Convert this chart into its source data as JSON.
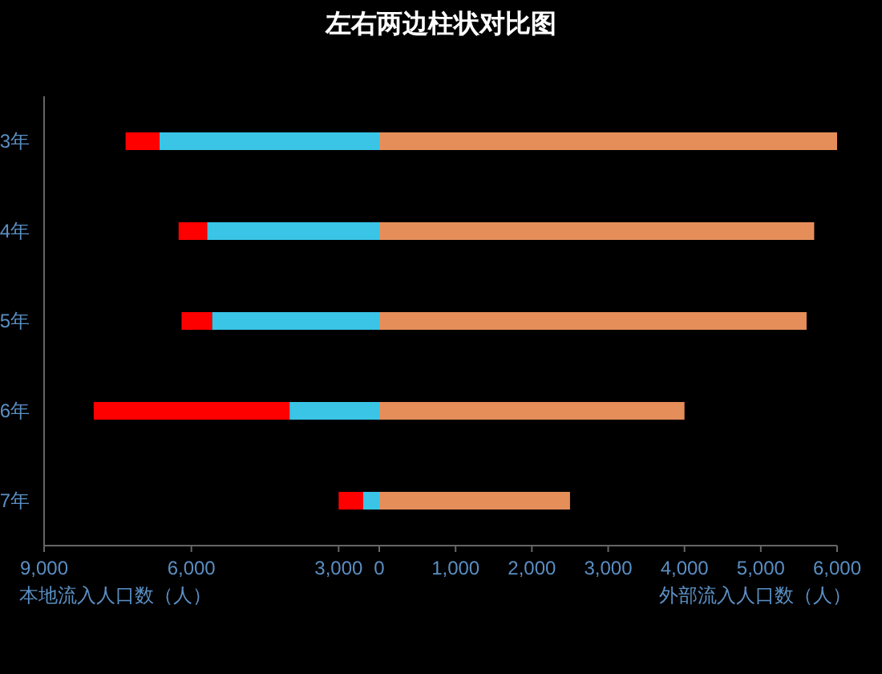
{
  "chart_data": [
    {
      "type": "bar",
      "orientation": "horizontal",
      "stacked": true,
      "title": "左右两边柱状对比图",
      "xlabel": "本地流入人口数（人）",
      "categories": [
        "3年",
        "4年",
        "5年",
        "6年",
        "7年"
      ],
      "series": [
        {
          "color": "#3ac4e6",
          "values": [
            6650,
            5680,
            5580,
            4000,
            2500
          ]
        },
        {
          "color": "#ff0000",
          "values": [
            690,
            580,
            620,
            3990,
            500
          ]
        }
      ],
      "xlim": [
        9000,
        0
      ],
      "xticks": [
        {
          "value": 9000,
          "label": "9,000"
        },
        {
          "value": 6000,
          "label": "6,000"
        },
        {
          "value": 3000,
          "label": "3,000"
        }
      ],
      "grid": false
    },
    {
      "type": "bar",
      "orientation": "horizontal",
      "xlabel": "外部流入人口数（人）",
      "categories": [
        null,
        null,
        null,
        null,
        null
      ],
      "series": [
        {
          "color": "#e58e5a",
          "values": [
            6000,
            5700,
            5600,
            4000,
            2500
          ]
        }
      ],
      "xlim": [
        0,
        6000
      ],
      "xticks": [
        0,
        {
          "value": 1000,
          "label": "1,000"
        },
        {
          "value": 2000,
          "label": "2,000"
        },
        {
          "value": 3000,
          "label": "3,000"
        },
        {
          "value": 4000,
          "label": "4,000"
        },
        {
          "value": 5000,
          "label": "5,000"
        },
        {
          "value": 6000,
          "label": "6,000"
        }
      ],
      "tick_labels": "x",
      "grid": false
    }
  ]
}
